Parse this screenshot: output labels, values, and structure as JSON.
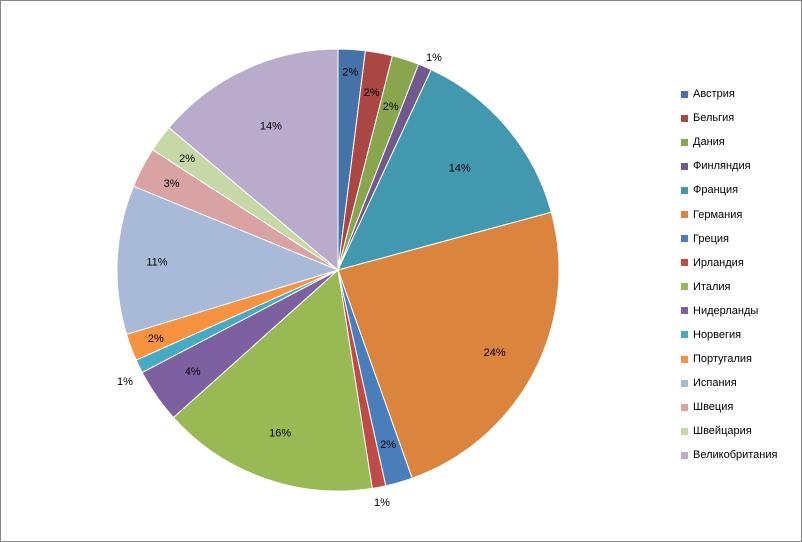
{
  "chart_data": {
    "type": "pie",
    "title": "",
    "start_angle_deg": 0,
    "direction": "clockwise",
    "legend_position": "right",
    "slices": [
      {
        "name": "Австрия",
        "value": 2,
        "label": "2%",
        "color": "#4572A7"
      },
      {
        "name": "Бельгия",
        "value": 2,
        "label": "2%",
        "color": "#AA4643"
      },
      {
        "name": "Дания",
        "value": 2,
        "label": "2%",
        "color": "#89A54E"
      },
      {
        "name": "Финляндия",
        "value": 1,
        "label": "1%",
        "color": "#71588F"
      },
      {
        "name": "Франция",
        "value": 14,
        "label": "14%",
        "color": "#4198AF"
      },
      {
        "name": "Германия",
        "value": 24,
        "label": "24%",
        "color": "#DB843D"
      },
      {
        "name": "Греция",
        "value": 2,
        "label": "2%",
        "color": "#4A7EBB"
      },
      {
        "name": "Ирландия",
        "value": 1,
        "label": "1%",
        "color": "#BE4B48"
      },
      {
        "name": "Италия",
        "value": 16,
        "label": "16%",
        "color": "#98B954"
      },
      {
        "name": "Нидерланды",
        "value": 4,
        "label": "4%",
        "color": "#7D60A0"
      },
      {
        "name": "Норвегия",
        "value": 1,
        "label": "1%",
        "color": "#46AAC4"
      },
      {
        "name": "Португалия",
        "value": 2,
        "label": "2%",
        "color": "#F69240"
      },
      {
        "name": "Испания",
        "value": 11,
        "label": "11%",
        "color": "#A9BAD8"
      },
      {
        "name": "Швеция",
        "value": 3,
        "label": "3%",
        "color": "#D9A3A3"
      },
      {
        "name": "Швейцария",
        "value": 2,
        "label": "2%",
        "color": "#C7D8A7"
      },
      {
        "name": "Великобритания",
        "value": 14,
        "label": "14%",
        "color": "#B8ABCB"
      }
    ]
  }
}
